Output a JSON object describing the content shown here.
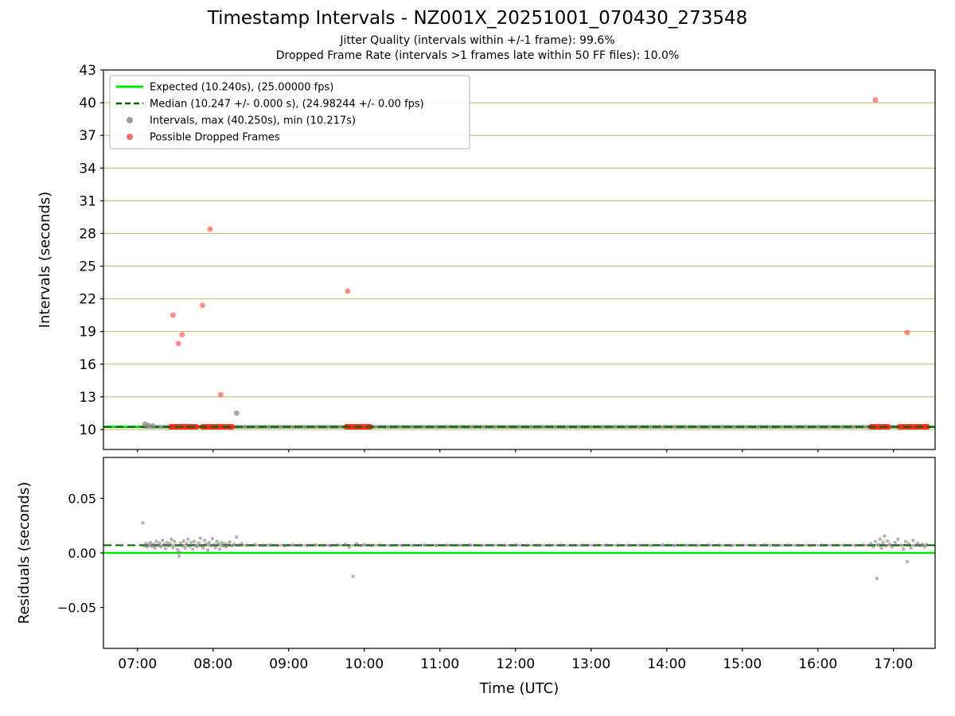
{
  "figure": {
    "title": "Timestamp Intervals - NZ001X_20251001_070430_273548",
    "subtitle1": "Jitter Quality (intervals within +/-1 frame): 99.6%",
    "subtitle2": "Dropped Frame Rate (intervals >1 frames late within 50 FF files): 10.0%"
  },
  "chart_data": {
    "type": "scatter",
    "title": "Timestamp Intervals - NZ001X_20251001_070430_273548",
    "subtitles": [
      "Jitter Quality (intervals within +/-1 frame): 99.6%",
      "Dropped Frame Rate (intervals >1 frames late within 50 FF files): 10.0%"
    ],
    "stats": {
      "jitter_quality_pct": 99.6,
      "dropped_frame_rate_pct": 10.0,
      "ff_files": 50,
      "expected_interval_s": 10.24,
      "expected_fps": 25.0,
      "median_interval_s": 10.247,
      "median_interval_err_s": 0.0,
      "median_fps": 24.98244,
      "median_fps_err": 0.0,
      "max_interval_s": 40.25,
      "min_interval_s": 10.217
    },
    "xlabel": "Time (UTC)",
    "xlim": [
      6.55,
      17.55
    ],
    "x_ticks": [
      {
        "hour": 7,
        "label": "07:00"
      },
      {
        "hour": 8,
        "label": "08:00"
      },
      {
        "hour": 9,
        "label": "09:00"
      },
      {
        "hour": 10,
        "label": "10:00"
      },
      {
        "hour": 11,
        "label": "11:00"
      },
      {
        "hour": 12,
        "label": "12:00"
      },
      {
        "hour": 13,
        "label": "13:00"
      },
      {
        "hour": 14,
        "label": "14:00"
      },
      {
        "hour": 15,
        "label": "15:00"
      },
      {
        "hour": 16,
        "label": "16:00"
      },
      {
        "hour": 17,
        "label": "17:00"
      }
    ],
    "colors": {
      "expected": "#00e500",
      "median": "#006400",
      "grid": "#bdb76b",
      "gray": "#8c8c8c",
      "red": "#ff1f12",
      "legend_gray": "#9c9c9c",
      "legend_red": "#f2716c"
    },
    "legend": [
      {
        "type": "line",
        "color": "#00e500",
        "label": "Expected (10.240s), (25.00000 fps)"
      },
      {
        "type": "dashed-line",
        "color": "#006400",
        "label": "Median (10.247 +/- 0.000 s), (24.98244 +/- 0.00 fps)"
      },
      {
        "type": "dot",
        "color": "#9c9c9c",
        "label": "Intervals, max (40.250s), min (10.217s)"
      },
      {
        "type": "dot",
        "color": "#f2716c",
        "label": "Possible Dropped Frames"
      }
    ],
    "top": {
      "ylabel": "Intervals (seconds)",
      "ylim": [
        8.17,
        43
      ],
      "yticks": [
        10,
        13,
        16,
        19,
        22,
        25,
        28,
        31,
        34,
        37,
        40,
        43
      ],
      "expected": {
        "y": 10.24
      },
      "median": {
        "y": 10.247
      },
      "baseline": {
        "y": 10.247,
        "t_start": 7.07,
        "t_end": 17.45
      },
      "dropped_segments": [
        [
          7.44,
          7.78
        ],
        [
          7.86,
          8.25
        ],
        [
          9.76,
          10.08
        ],
        [
          16.7,
          16.93
        ],
        [
          17.08,
          17.45
        ]
      ],
      "dropped_points": [
        [
          7.47,
          20.5
        ],
        [
          7.54,
          17.9
        ],
        [
          7.59,
          18.7
        ],
        [
          7.86,
          21.4
        ],
        [
          7.96,
          28.4
        ],
        [
          8.1,
          13.2
        ],
        [
          9.78,
          22.7
        ],
        [
          16.76,
          40.25
        ],
        [
          17.18,
          18.9
        ]
      ],
      "interval_points": [
        [
          7.1,
          10.5
        ],
        [
          7.14,
          10.38
        ],
        [
          7.2,
          10.33
        ],
        [
          8.31,
          11.5
        ]
      ]
    },
    "bottom": {
      "ylabel": "Residuals (seconds)",
      "ylim": [
        -0.0875,
        0.0875
      ],
      "yticks": [
        {
          "v": 0.05,
          "label": "0.05"
        },
        {
          "v": 0.0,
          "label": "0.00"
        },
        {
          "v": -0.05,
          "label": "−0.05"
        }
      ],
      "zero_line": 0.0,
      "median_line": 0.007,
      "band": {
        "y": 0.007,
        "t_start": 7.07,
        "t_end": 17.45
      },
      "points": [
        [
          7.07,
          0.0275
        ],
        [
          7.09,
          0.0065
        ],
        [
          7.11,
          0.0085
        ],
        [
          7.13,
          0.0055
        ],
        [
          7.15,
          0.0075
        ],
        [
          7.17,
          0.0095
        ],
        [
          7.19,
          0.006
        ],
        [
          7.21,
          0.008
        ],
        [
          7.23,
          0.0045
        ],
        [
          7.25,
          0.0105
        ],
        [
          7.27,
          0.007
        ],
        [
          7.29,
          0.009
        ],
        [
          7.31,
          0.0055
        ],
        [
          7.33,
          0.0115
        ],
        [
          7.35,
          0.0075
        ],
        [
          7.37,
          0.004
        ],
        [
          7.39,
          0.0095
        ],
        [
          7.41,
          0.0065
        ],
        [
          7.43,
          0.0085
        ],
        [
          7.45,
          0.0125
        ],
        [
          7.47,
          0.005
        ],
        [
          7.49,
          0.0105
        ],
        [
          7.51,
          0.007
        ],
        [
          7.53,
          0.003
        ],
        [
          7.55,
          -0.003
        ],
        [
          7.55,
          0.0005
        ],
        [
          7.57,
          0.009
        ],
        [
          7.59,
          0.0065
        ],
        [
          7.61,
          0.011
        ],
        [
          7.63,
          0.0045
        ],
        [
          7.65,
          0.0085
        ],
        [
          7.67,
          0.0125
        ],
        [
          7.69,
          0.006
        ],
        [
          7.71,
          0.0095
        ],
        [
          7.73,
          0.0035
        ],
        [
          7.75,
          0.0105
        ],
        [
          7.77,
          0.007
        ],
        [
          7.79,
          0.0055
        ],
        [
          7.81,
          0.009
        ],
        [
          7.83,
          0.0135
        ],
        [
          7.85,
          0.0065
        ],
        [
          7.87,
          0.0045
        ],
        [
          7.89,
          0.0115
        ],
        [
          7.91,
          0.008
        ],
        [
          7.93,
          0.0025
        ],
        [
          7.95,
          0.0095
        ],
        [
          7.97,
          0.0065
        ],
        [
          7.99,
          0.013
        ],
        [
          8.01,
          0.0075
        ],
        [
          8.03,
          0.005
        ],
        [
          8.05,
          0.0105
        ],
        [
          8.07,
          0.008
        ],
        [
          8.09,
          0.0035
        ],
        [
          8.11,
          0.0095
        ],
        [
          8.13,
          0.0065
        ],
        [
          8.15,
          0.0085
        ],
        [
          8.17,
          0.0055
        ],
        [
          8.19,
          0.0075
        ],
        [
          8.22,
          0.01
        ],
        [
          8.25,
          0.0065
        ],
        [
          8.28,
          0.008
        ],
        [
          8.31,
          0.0145
        ],
        [
          8.34,
          0.007
        ],
        [
          8.38,
          0.0085
        ],
        [
          8.45,
          0.007
        ],
        [
          8.55,
          0.0075
        ],
        [
          8.65,
          0.0068
        ],
        [
          8.75,
          0.0072
        ],
        [
          8.85,
          0.007
        ],
        [
          8.95,
          0.0066
        ],
        [
          9.05,
          0.0074
        ],
        [
          9.15,
          0.007
        ],
        [
          9.25,
          0.0069
        ],
        [
          9.35,
          0.0073
        ],
        [
          9.45,
          0.007
        ],
        [
          9.55,
          0.0067
        ],
        [
          9.65,
          0.0072
        ],
        [
          9.75,
          0.0078
        ],
        [
          9.8,
          0.0052
        ],
        [
          9.85,
          -0.0215
        ],
        [
          9.9,
          0.0085
        ],
        [
          9.95,
          0.0068
        ],
        [
          10.0,
          0.0075
        ],
        [
          10.1,
          0.007
        ],
        [
          10.2,
          0.0072
        ],
        [
          10.35,
          0.0069
        ],
        [
          10.5,
          0.0071
        ],
        [
          10.65,
          0.007
        ],
        [
          10.8,
          0.0073
        ],
        [
          10.95,
          0.0068
        ],
        [
          11.1,
          0.0071
        ],
        [
          11.25,
          0.007
        ],
        [
          11.4,
          0.0072
        ],
        [
          11.55,
          0.0069
        ],
        [
          11.7,
          0.0071
        ],
        [
          11.85,
          0.007
        ],
        [
          12.0,
          0.0073
        ],
        [
          12.15,
          0.0068
        ],
        [
          12.3,
          0.0071
        ],
        [
          12.45,
          0.007
        ],
        [
          12.6,
          0.0072
        ],
        [
          12.75,
          0.0069
        ],
        [
          12.9,
          0.0071
        ],
        [
          13.05,
          0.007
        ],
        [
          13.2,
          0.0072
        ],
        [
          13.35,
          0.0069
        ],
        [
          13.5,
          0.0071
        ],
        [
          13.65,
          0.007
        ],
        [
          13.8,
          0.0068
        ],
        [
          13.95,
          0.0072
        ],
        [
          14.1,
          0.007
        ],
        [
          14.25,
          0.0071
        ],
        [
          14.4,
          0.0069
        ],
        [
          14.55,
          0.0072
        ],
        [
          14.7,
          0.007
        ],
        [
          14.85,
          0.0068
        ],
        [
          15.0,
          0.0071
        ],
        [
          15.15,
          0.007
        ],
        [
          15.3,
          0.0072
        ],
        [
          15.45,
          0.0069
        ],
        [
          15.6,
          0.0071
        ],
        [
          15.75,
          0.007
        ],
        [
          15.9,
          0.0068
        ],
        [
          16.05,
          0.0072
        ],
        [
          16.2,
          0.007
        ],
        [
          16.35,
          0.0071
        ],
        [
          16.5,
          0.0069
        ],
        [
          16.6,
          0.0072
        ],
        [
          16.7,
          0.0085
        ],
        [
          16.73,
          0.0055
        ],
        [
          16.76,
          0.0105
        ],
        [
          16.78,
          -0.0235
        ],
        [
          16.8,
          0.0075
        ],
        [
          16.82,
          0.0125
        ],
        [
          16.84,
          0.0045
        ],
        [
          16.86,
          0.0095
        ],
        [
          16.88,
          0.0155
        ],
        [
          16.9,
          0.0065
        ],
        [
          16.92,
          0.011
        ],
        [
          16.95,
          0.008
        ],
        [
          16.98,
          0.0055
        ],
        [
          17.02,
          0.0095
        ],
        [
          17.06,
          0.0125
        ],
        [
          17.1,
          0.007
        ],
        [
          17.13,
          0.0035
        ],
        [
          17.16,
          0.0105
        ],
        [
          17.18,
          -0.008
        ],
        [
          17.2,
          0.0085
        ],
        [
          17.23,
          0.0045
        ],
        [
          17.26,
          0.0115
        ],
        [
          17.29,
          0.007
        ],
        [
          17.32,
          0.009
        ],
        [
          17.35,
          0.0065
        ],
        [
          17.38,
          0.008
        ],
        [
          17.41,
          0.0055
        ],
        [
          17.44,
          0.0075
        ]
      ]
    }
  }
}
